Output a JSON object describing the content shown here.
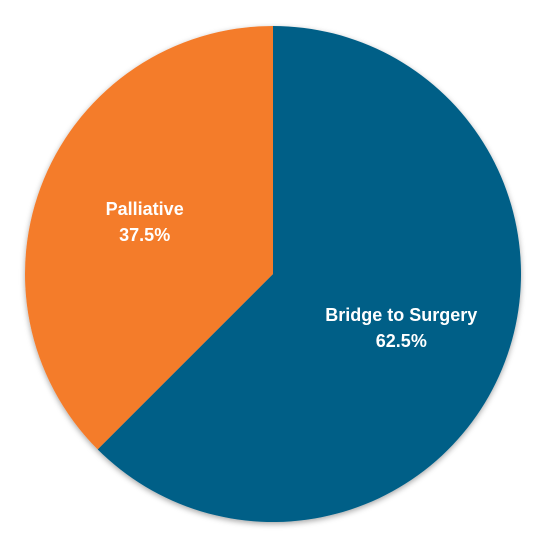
{
  "chart_data": {
    "type": "pie",
    "title": "",
    "categories": [
      "Bridge to Surgery",
      "Palliative"
    ],
    "values": [
      62.5,
      37.5
    ],
    "labels": [
      "62.5%",
      "37.5%"
    ],
    "colors": [
      "#005f87",
      "#f47b2a"
    ],
    "start_angle_deg": 0,
    "direction": "clockwise",
    "legend": "none"
  }
}
